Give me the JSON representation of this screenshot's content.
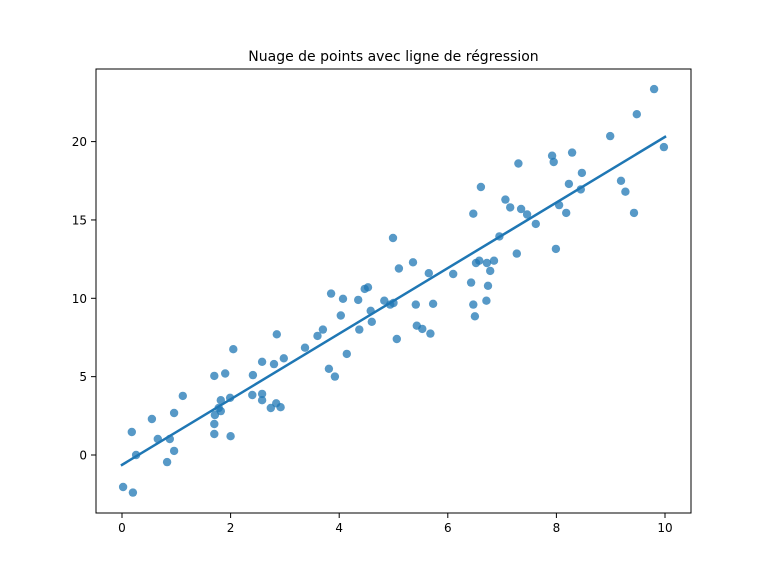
{
  "chart_data": {
    "type": "scatter",
    "title": "Nuage de points avec ligne de régression",
    "xlabel": "",
    "ylabel": "",
    "xlim": [
      -0.5,
      10.5
    ],
    "ylim": [
      -3.7,
      24.5
    ],
    "xticks": [
      0,
      2,
      4,
      6,
      8,
      10
    ],
    "yticks": [
      0,
      5,
      10,
      15,
      20
    ],
    "xtick_labels": [
      "0",
      "2",
      "4",
      "6",
      "8",
      "10"
    ],
    "ytick_labels": [
      "0",
      "5",
      "10",
      "15",
      "20"
    ],
    "grid": false,
    "legend": null,
    "colors": {
      "points": "#1f77b4",
      "line": "#1f77b4",
      "axes": "#000000"
    },
    "series": [
      {
        "name": "points",
        "kind": "scatter",
        "alpha": 0.75,
        "points": [
          [
            0.02,
            -2.04
          ],
          [
            0.2,
            -2.4
          ],
          [
            0.18,
            1.47
          ],
          [
            0.26,
            0.0
          ],
          [
            0.55,
            2.3
          ],
          [
            0.66,
            1.02
          ],
          [
            0.88,
            1.02
          ],
          [
            0.83,
            -0.45
          ],
          [
            0.96,
            0.26
          ],
          [
            0.96,
            2.68
          ],
          [
            1.12,
            3.77
          ],
          [
            1.7,
            1.34
          ],
          [
            1.7,
            1.98
          ],
          [
            1.71,
            2.55
          ],
          [
            1.7,
            5.05
          ],
          [
            1.78,
            3.0
          ],
          [
            1.82,
            2.8
          ],
          [
            1.82,
            3.5
          ],
          [
            1.9,
            5.2
          ],
          [
            1.99,
            3.65
          ],
          [
            2.0,
            1.2
          ],
          [
            2.05,
            6.75
          ],
          [
            2.41,
            5.1
          ],
          [
            2.4,
            3.83
          ],
          [
            2.58,
            3.9
          ],
          [
            2.58,
            3.5
          ],
          [
            2.58,
            5.95
          ],
          [
            2.74,
            3.0
          ],
          [
            2.8,
            5.8
          ],
          [
            2.84,
            3.3
          ],
          [
            2.85,
            7.7
          ],
          [
            2.92,
            3.05
          ],
          [
            2.98,
            6.17
          ],
          [
            3.37,
            6.85
          ],
          [
            3.6,
            7.6
          ],
          [
            3.7,
            8.0
          ],
          [
            3.81,
            5.5
          ],
          [
            3.85,
            10.3
          ],
          [
            3.92,
            5.0
          ],
          [
            4.03,
            8.9
          ],
          [
            4.07,
            9.97
          ],
          [
            4.14,
            6.45
          ],
          [
            4.35,
            9.9
          ],
          [
            4.37,
            8.0
          ],
          [
            4.47,
            10.6
          ],
          [
            4.53,
            10.7
          ],
          [
            4.58,
            9.2
          ],
          [
            4.6,
            8.5
          ],
          [
            4.83,
            9.85
          ],
          [
            4.94,
            9.6
          ],
          [
            4.99,
            13.85
          ],
          [
            5.0,
            9.7
          ],
          [
            5.06,
            7.4
          ],
          [
            5.1,
            11.9
          ],
          [
            5.36,
            12.3
          ],
          [
            5.41,
            9.6
          ],
          [
            5.43,
            8.25
          ],
          [
            5.53,
            8.05
          ],
          [
            5.65,
            11.6
          ],
          [
            5.68,
            7.75
          ],
          [
            5.73,
            9.65
          ],
          [
            6.1,
            11.55
          ],
          [
            6.43,
            11.0
          ],
          [
            6.47,
            9.6
          ],
          [
            6.47,
            15.4
          ],
          [
            6.5,
            8.85
          ],
          [
            6.52,
            12.25
          ],
          [
            6.58,
            12.4
          ],
          [
            6.61,
            17.1
          ],
          [
            6.71,
            9.85
          ],
          [
            6.72,
            12.25
          ],
          [
            6.74,
            10.8
          ],
          [
            6.78,
            11.75
          ],
          [
            6.85,
            12.4
          ],
          [
            6.95,
            13.95
          ],
          [
            7.06,
            16.3
          ],
          [
            7.15,
            15.8
          ],
          [
            7.27,
            12.85
          ],
          [
            7.3,
            18.6
          ],
          [
            7.35,
            15.7
          ],
          [
            7.46,
            15.35
          ],
          [
            7.62,
            14.75
          ],
          [
            7.92,
            19.1
          ],
          [
            7.95,
            18.7
          ],
          [
            7.99,
            13.15
          ],
          [
            8.05,
            15.95
          ],
          [
            8.18,
            15.45
          ],
          [
            8.23,
            17.3
          ],
          [
            8.29,
            19.3
          ],
          [
            8.45,
            16.95
          ],
          [
            8.47,
            18.0
          ],
          [
            8.99,
            20.35
          ],
          [
            9.19,
            17.5
          ],
          [
            9.27,
            16.8
          ],
          [
            9.43,
            15.45
          ],
          [
            9.48,
            21.75
          ],
          [
            9.8,
            23.35
          ],
          [
            9.98,
            19.65
          ]
        ]
      },
      {
        "name": "regression",
        "kind": "line",
        "x": [
          0,
          10
        ],
        "y": [
          -0.63,
          20.3
        ]
      }
    ]
  }
}
